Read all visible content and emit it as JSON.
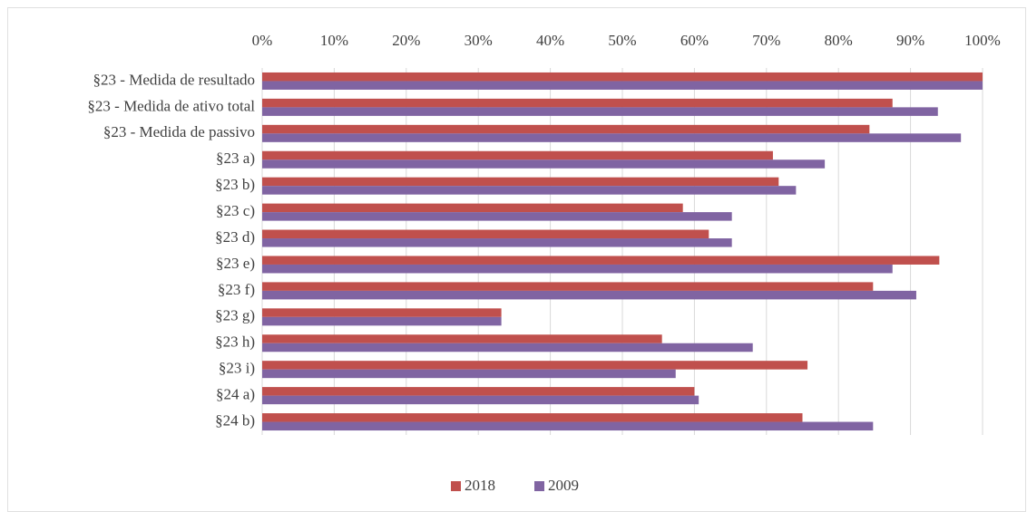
{
  "chart_data": {
    "type": "hbar",
    "categories": [
      "§23 - Medida de resultado",
      "§23 - Medida de ativo total",
      "§23 - Medida de passivo",
      "§23 a)",
      "§23 b)",
      "§23 c)",
      "§23 d)",
      "§23 e)",
      "§23 f)",
      "§23 g)",
      "§23 h)",
      "§23 i)",
      "§24 a)",
      "§24 b)"
    ],
    "series": [
      {
        "name": "2018",
        "color": "#c0504d",
        "values": [
          100,
          87.5,
          84.3,
          70.9,
          71.7,
          58.4,
          62,
          94,
          84.8,
          33.2,
          55.5,
          75.7,
          60,
          75
        ]
      },
      {
        "name": "2009",
        "color": "#8064a2",
        "values": [
          100,
          93.8,
          97,
          78.1,
          74.1,
          65.2,
          65.2,
          87.5,
          90.8,
          33.2,
          68.1,
          57.4,
          60.6,
          84.8
        ]
      }
    ],
    "xlim": [
      0,
      100
    ],
    "xticks": [
      {
        "value": 0,
        "label": "0%"
      },
      {
        "value": 10,
        "label": "10%"
      },
      {
        "value": 20,
        "label": "20%"
      },
      {
        "value": 30,
        "label": "30%"
      },
      {
        "value": 40,
        "label": "40%"
      },
      {
        "value": 50,
        "label": "50%"
      },
      {
        "value": 60,
        "label": "60%"
      },
      {
        "value": 70,
        "label": "70%"
      },
      {
        "value": 80,
        "label": "80%"
      },
      {
        "value": 90,
        "label": "90%"
      },
      {
        "value": 100,
        "label": "100%"
      }
    ],
    "grid": true,
    "legend": "bottom"
  }
}
